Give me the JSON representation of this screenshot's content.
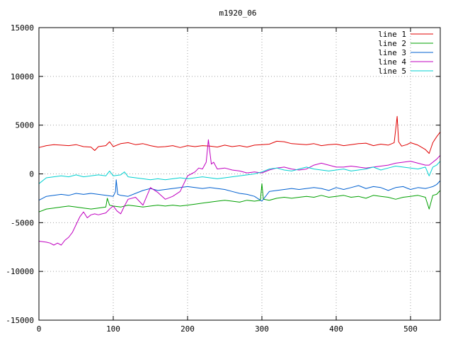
{
  "chart_data": {
    "type": "line",
    "title": "m1920_06",
    "xlabel": "",
    "ylabel": "",
    "xlim": [
      0,
      540
    ],
    "ylim": [
      -15000,
      15000
    ],
    "xticks": [
      0,
      100,
      200,
      300,
      400,
      500
    ],
    "yticks": [
      -15000,
      -10000,
      -5000,
      0,
      5000,
      10000,
      15000
    ],
    "grid": true,
    "legend_position": "top-right",
    "series": [
      {
        "name": "line 1",
        "color": "#e00000",
        "x": [
          0,
          10,
          20,
          30,
          40,
          50,
          60,
          70,
          75,
          80,
          90,
          95,
          100,
          110,
          120,
          130,
          140,
          150,
          160,
          170,
          180,
          190,
          200,
          210,
          220,
          230,
          240,
          250,
          260,
          270,
          280,
          290,
          300,
          310,
          320,
          330,
          340,
          350,
          360,
          370,
          380,
          390,
          400,
          410,
          420,
          430,
          440,
          450,
          460,
          470,
          478,
          482,
          484,
          488,
          495,
          500,
          510,
          520,
          525,
          530,
          535,
          540
        ],
        "y": [
          2700,
          2900,
          3000,
          2950,
          2900,
          3000,
          2800,
          2750,
          2400,
          2800,
          2900,
          3300,
          2800,
          3100,
          3200,
          3000,
          3100,
          2900,
          2750,
          2800,
          2900,
          2700,
          2900,
          2800,
          2900,
          2850,
          2750,
          2950,
          2800,
          2900,
          2750,
          2950,
          3000,
          3050,
          3350,
          3300,
          3100,
          3050,
          3000,
          3100,
          2900,
          3000,
          3050,
          2900,
          3000,
          3100,
          3150,
          2900,
          3050,
          2950,
          3200,
          5900,
          3300,
          2850,
          3000,
          3200,
          2950,
          2500,
          2100,
          3200,
          3800,
          4300
        ]
      },
      {
        "name": "line 2",
        "color": "#00a000",
        "x": [
          0,
          10,
          20,
          30,
          40,
          50,
          60,
          70,
          80,
          90,
          92,
          95,
          100,
          110,
          120,
          130,
          140,
          150,
          160,
          170,
          180,
          190,
          200,
          210,
          220,
          230,
          240,
          250,
          260,
          270,
          280,
          290,
          298,
          300,
          302,
          310,
          320,
          330,
          340,
          350,
          360,
          370,
          380,
          390,
          400,
          410,
          420,
          430,
          440,
          450,
          460,
          470,
          480,
          490,
          500,
          510,
          520,
          525,
          530,
          535,
          540
        ],
        "y": [
          -3900,
          -3600,
          -3500,
          -3400,
          -3300,
          -3400,
          -3500,
          -3600,
          -3500,
          -3400,
          -2500,
          -3200,
          -3300,
          -3400,
          -3200,
          -3300,
          -3400,
          -3300,
          -3200,
          -3300,
          -3200,
          -3300,
          -3200,
          -3100,
          -3000,
          -2900,
          -2800,
          -2700,
          -2800,
          -2900,
          -2700,
          -2800,
          -2700,
          -1000,
          -2600,
          -2700,
          -2500,
          -2400,
          -2500,
          -2400,
          -2300,
          -2400,
          -2200,
          -2400,
          -2300,
          -2200,
          -2400,
          -2300,
          -2500,
          -2200,
          -2300,
          -2400,
          -2600,
          -2400,
          -2300,
          -2200,
          -2400,
          -3600,
          -2200,
          -2100,
          -1700
        ]
      },
      {
        "name": "line 3",
        "color": "#0060d0",
        "x": [
          0,
          10,
          20,
          30,
          40,
          50,
          60,
          70,
          80,
          90,
          100,
          103,
          104,
          106,
          110,
          120,
          130,
          140,
          150,
          160,
          170,
          180,
          190,
          200,
          210,
          220,
          230,
          240,
          250,
          260,
          270,
          280,
          290,
          300,
          310,
          320,
          330,
          340,
          350,
          360,
          370,
          380,
          390,
          400,
          410,
          420,
          430,
          440,
          450,
          460,
          470,
          480,
          490,
          500,
          510,
          520,
          525,
          530,
          535,
          540
        ],
        "y": [
          -2700,
          -2300,
          -2200,
          -2100,
          -2200,
          -2000,
          -2100,
          -2000,
          -2100,
          -2200,
          -2300,
          -1800,
          -600,
          -2100,
          -2200,
          -2300,
          -2000,
          -1700,
          -1500,
          -1700,
          -1600,
          -1500,
          -1400,
          -1300,
          -1400,
          -1500,
          -1400,
          -1500,
          -1600,
          -1800,
          -2000,
          -2100,
          -2300,
          -2800,
          -1800,
          -1700,
          -1600,
          -1500,
          -1600,
          -1500,
          -1400,
          -1500,
          -1700,
          -1400,
          -1600,
          -1400,
          -1200,
          -1500,
          -1300,
          -1400,
          -1700,
          -1400,
          -1300,
          -1600,
          -1400,
          -1500,
          -1400,
          -1300,
          -1100,
          -700
        ]
      },
      {
        "name": "line 4",
        "color": "#c000c0",
        "x": [
          0,
          10,
          15,
          20,
          25,
          30,
          35,
          40,
          45,
          50,
          55,
          60,
          65,
          70,
          75,
          80,
          85,
          90,
          95,
          100,
          105,
          110,
          115,
          120,
          130,
          140,
          150,
          160,
          170,
          180,
          190,
          200,
          205,
          210,
          215,
          220,
          225,
          228,
          232,
          235,
          240,
          250,
          260,
          270,
          280,
          290,
          300,
          310,
          320,
          330,
          340,
          350,
          360,
          370,
          380,
          390,
          400,
          410,
          420,
          430,
          440,
          450,
          460,
          470,
          480,
          490,
          500,
          510,
          520,
          525,
          530,
          535,
          540
        ],
        "y": [
          -6900,
          -7000,
          -7100,
          -7300,
          -7100,
          -7300,
          -6800,
          -6500,
          -6000,
          -5200,
          -4400,
          -3900,
          -4500,
          -4200,
          -4100,
          -4200,
          -4100,
          -4000,
          -3600,
          -3300,
          -3800,
          -4100,
          -3300,
          -2600,
          -2400,
          -3200,
          -1400,
          -1900,
          -2600,
          -2300,
          -1800,
          -200,
          0,
          200,
          600,
          500,
          1200,
          3500,
          1000,
          1200,
          500,
          600,
          400,
          300,
          100,
          200,
          100,
          400,
          600,
          700,
          500,
          400,
          500,
          900,
          1100,
          900,
          700,
          700,
          800,
          700,
          600,
          700,
          800,
          900,
          1100,
          1200,
          1300,
          1100,
          900,
          900,
          1200,
          1500,
          1900
        ]
      },
      {
        "name": "line 5",
        "color": "#00d0d0",
        "x": [
          0,
          10,
          20,
          30,
          40,
          50,
          60,
          70,
          80,
          90,
          95,
          100,
          110,
          115,
          120,
          130,
          140,
          150,
          160,
          170,
          180,
          190,
          200,
          210,
          220,
          230,
          240,
          250,
          260,
          270,
          280,
          290,
          300,
          310,
          320,
          330,
          340,
          350,
          360,
          370,
          380,
          390,
          400,
          410,
          420,
          430,
          440,
          450,
          460,
          470,
          480,
          490,
          500,
          510,
          520,
          525,
          530,
          535,
          540
        ],
        "y": [
          -1000,
          -400,
          -300,
          -200,
          -300,
          -100,
          -300,
          -200,
          -100,
          -200,
          300,
          -200,
          -100,
          200,
          -300,
          -400,
          -500,
          -600,
          -500,
          -600,
          -500,
          -400,
          -500,
          -400,
          -300,
          -400,
          -500,
          -400,
          -300,
          -200,
          -100,
          0,
          200,
          500,
          600,
          400,
          300,
          500,
          700,
          500,
          400,
          300,
          400,
          500,
          300,
          400,
          500,
          700,
          400,
          600,
          800,
          700,
          600,
          500,
          700,
          -200,
          700,
          900,
          1300
        ]
      }
    ]
  }
}
